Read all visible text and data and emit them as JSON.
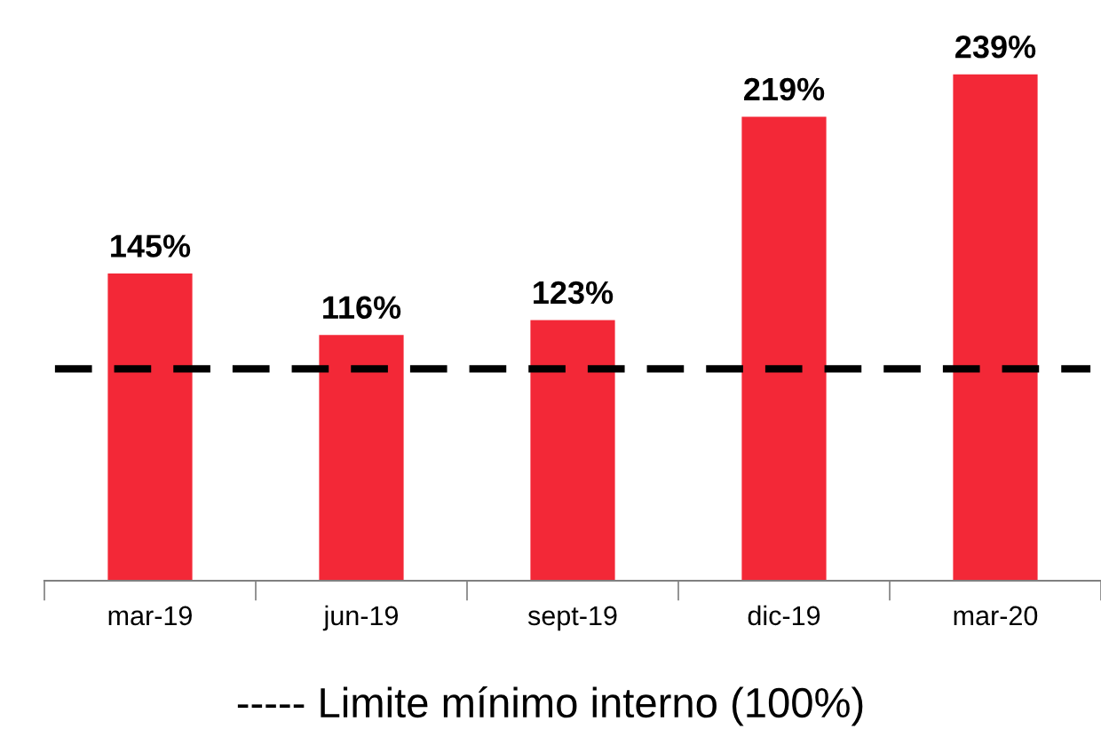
{
  "chart_data": {
    "type": "bar",
    "categories": [
      "mar-19",
      "jun-19",
      "sept-19",
      "dic-19",
      "mar-20"
    ],
    "values": [
      145,
      116,
      123,
      219,
      239
    ],
    "color": "#f32837",
    "data_labels": true,
    "value_labels": [
      "145%",
      "116%",
      "123%",
      "219%",
      "239%"
    ],
    "ref_lines": [
      {
        "axis": "y",
        "value": 100,
        "label": "----- Limite mínimo interno (100%)",
        "color": "#000000",
        "line_style": "dashed"
      }
    ],
    "grid": false,
    "legend": false
  }
}
